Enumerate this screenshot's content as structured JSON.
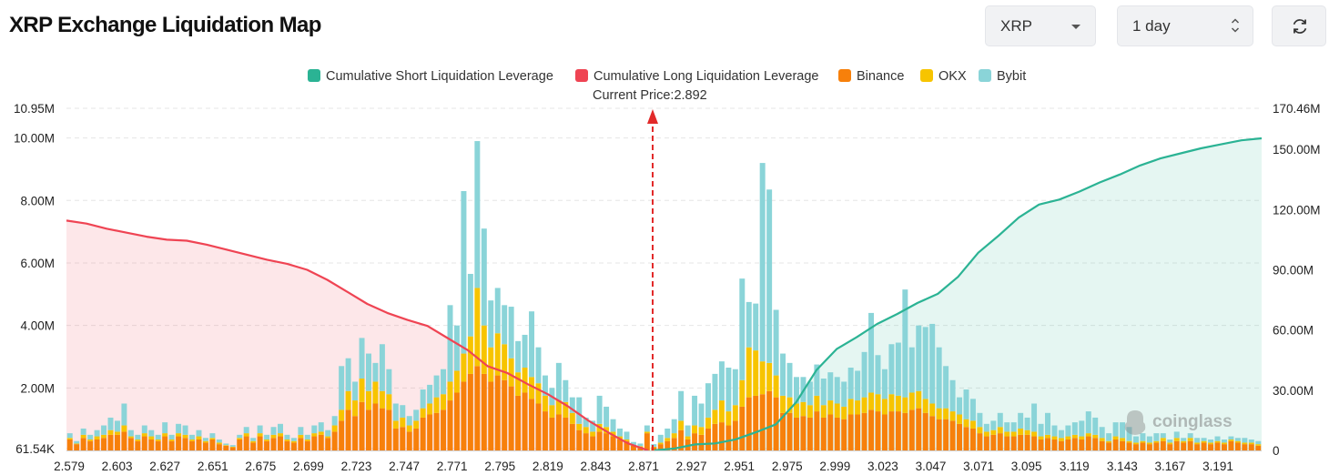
{
  "header": {
    "title": "XRP Exchange Liquidation Map",
    "coin_select": "XRP",
    "range_select": "1 day",
    "refresh_icon": "refresh-icon"
  },
  "colors": {
    "short": "#2bb394",
    "long": "#ef4453",
    "binance": "#f7800b",
    "okx": "#f7c400",
    "bybit": "#8ad4d8",
    "price_marker": "#e22a2a"
  },
  "legend": {
    "short": "Cumulative Short Liquidation Leverage",
    "long": "Cumulative Long Liquidation Leverage",
    "binance": "Binance",
    "okx": "OKX",
    "bybit": "Bybit"
  },
  "current_price_label": "Current Price:2.892",
  "watermark": "coinglass",
  "chart_data": {
    "type": "bar",
    "current_price": 2.892,
    "x_ticks": [
      "2.579",
      "2.603",
      "2.627",
      "2.651",
      "2.675",
      "2.699",
      "2.723",
      "2.747",
      "2.771",
      "2.795",
      "2.819",
      "2.843",
      "2.871",
      "2.927",
      "2.951",
      "2.975",
      "2.999",
      "3.023",
      "3.047",
      "3.071",
      "3.095",
      "3.119",
      "3.143",
      "3.167",
      "3.191"
    ],
    "y_left_ticks": [
      "61.54K",
      "2.00M",
      "4.00M",
      "6.00M",
      "8.00M",
      "10.00M",
      "10.95M"
    ],
    "y_left_values": [
      0.06154,
      2,
      4,
      6,
      8,
      10,
      10.95
    ],
    "y_right_ticks": [
      "0",
      "30.00M",
      "60.00M",
      "90.00M",
      "120.00M",
      "150.00M",
      "170.46M"
    ],
    "y_right_values": [
      0,
      30,
      60,
      90,
      120,
      150,
      170.46
    ],
    "y_left_unit": "M",
    "series_names": [
      "Binance",
      "OKX",
      "Bybit"
    ],
    "binance": [
      0.35,
      0.2,
      0.4,
      0.3,
      0.35,
      0.4,
      0.5,
      0.5,
      0.6,
      0.4,
      0.3,
      0.45,
      0.35,
      0.3,
      0.45,
      0.3,
      0.45,
      0.4,
      0.3,
      0.35,
      0.25,
      0.35,
      0.2,
      0.15,
      0.1,
      0.35,
      0.45,
      0.25,
      0.45,
      0.3,
      0.4,
      0.45,
      0.3,
      0.25,
      0.4,
      0.3,
      0.45,
      0.5,
      0.4,
      0.6,
      0.95,
      1.3,
      1.1,
      1.55,
      1.3,
      1.5,
      1.35,
      1.3,
      0.7,
      0.75,
      0.6,
      0.7,
      1.05,
      1.15,
      1.2,
      1.3,
      1.6,
      1.85,
      2.2,
      2.45,
      2.7,
      2.45,
      2.2,
      2.4,
      2.25,
      2.05,
      1.75,
      1.85,
      1.65,
      1.5,
      1.25,
      1.05,
      1.15,
      1.05,
      0.85,
      0.65,
      0.55,
      0.45,
      0.6,
      0.55,
      0.45,
      0.35,
      0.3,
      0.15,
      0.12,
      0.55,
      0.1,
      0.2,
      0.3,
      0.4,
      0.65,
      0.35,
      0.55,
      0.5,
      0.7,
      0.85,
      0.9,
      0.8,
      0.95,
      1.4,
      1.7,
      1.75,
      1.8,
      1.9,
      1.7,
      1.2,
      1.2,
      1.05,
      1.1,
      1.05,
      1.25,
      1.05,
      1.15,
      1.05,
      1.0,
      1.15,
      1.15,
      1.2,
      1.3,
      1.25,
      1.15,
      1.25,
      1.25,
      1.2,
      1.3,
      1.35,
      1.2,
      1.1,
      1.0,
      1.0,
      0.95,
      0.85,
      0.75,
      0.7,
      0.55,
      0.45,
      0.5,
      0.55,
      0.45,
      0.45,
      0.5,
      0.5,
      0.45,
      0.35,
      0.4,
      0.35,
      0.3,
      0.35,
      0.4,
      0.35,
      0.45,
      0.4,
      0.3,
      0.25,
      0.35,
      0.3,
      0.25,
      0.2,
      0.25,
      0.2,
      0.25,
      0.3,
      0.2,
      0.3,
      0.25,
      0.3,
      0.2,
      0.25,
      0.2,
      0.25,
      0.2,
      0.3,
      0.25,
      0.2,
      0.2,
      0.15
    ],
    "okx": [
      0.05,
      0.02,
      0.1,
      0.05,
      0.1,
      0.1,
      0.15,
      0.1,
      0.2,
      0.05,
      0.05,
      0.1,
      0.1,
      0.05,
      0.1,
      0.05,
      0.1,
      0.1,
      0.05,
      0.1,
      0.05,
      0.05,
      0.05,
      0.02,
      0.02,
      0.05,
      0.1,
      0.05,
      0.1,
      0.05,
      0.1,
      0.1,
      0.05,
      0.05,
      0.1,
      0.05,
      0.1,
      0.1,
      0.05,
      0.2,
      0.35,
      0.6,
      0.5,
      0.75,
      0.6,
      0.7,
      0.55,
      0.5,
      0.25,
      0.3,
      0.2,
      0.25,
      0.3,
      0.35,
      0.5,
      0.5,
      0.6,
      0.7,
      0.9,
      1.2,
      2.5,
      1.55,
      1.1,
      1.35,
      1.15,
      0.9,
      0.75,
      0.8,
      0.7,
      0.65,
      0.5,
      0.4,
      0.45,
      0.5,
      0.35,
      0.2,
      0.2,
      0.15,
      0.25,
      0.2,
      0.15,
      0.1,
      0.05,
      0.02,
      0.02,
      0.05,
      0.02,
      0.05,
      0.1,
      0.15,
      0.3,
      0.1,
      0.25,
      0.25,
      0.35,
      0.45,
      0.7,
      0.45,
      0.5,
      0.85,
      1.6,
      1.45,
      1.05,
      0.9,
      0.7,
      0.55,
      0.5,
      0.45,
      0.45,
      0.4,
      0.5,
      0.4,
      0.45,
      0.45,
      0.4,
      0.5,
      0.45,
      0.5,
      0.55,
      0.55,
      0.5,
      0.55,
      0.5,
      0.5,
      0.55,
      0.55,
      0.45,
      0.4,
      0.35,
      0.35,
      0.3,
      0.3,
      0.25,
      0.25,
      0.2,
      0.15,
      0.15,
      0.2,
      0.15,
      0.15,
      0.2,
      0.15,
      0.15,
      0.1,
      0.1,
      0.1,
      0.1,
      0.1,
      0.1,
      0.1,
      0.1,
      0.1,
      0.1,
      0.05,
      0.1,
      0.1,
      0.05,
      0.05,
      0.05,
      0.05,
      0.05,
      0.1,
      0.05,
      0.1,
      0.05,
      0.1,
      0.05,
      0.05,
      0.05,
      0.05,
      0.05,
      0.05,
      0.05,
      0.05,
      0.05,
      0.05
    ],
    "bybit": [
      0.15,
      0.08,
      0.2,
      0.15,
      0.2,
      0.3,
      0.4,
      0.35,
      0.7,
      0.2,
      0.15,
      0.25,
      0.2,
      0.15,
      0.35,
      0.15,
      0.3,
      0.3,
      0.15,
      0.2,
      0.1,
      0.15,
      0.1,
      0.05,
      0.05,
      0.1,
      0.2,
      0.1,
      0.25,
      0.15,
      0.25,
      0.3,
      0.15,
      0.1,
      0.25,
      0.15,
      0.25,
      0.3,
      0.2,
      0.3,
      1.4,
      1.05,
      0.6,
      1.3,
      1.2,
      0.6,
      1.5,
      0.8,
      0.55,
      0.4,
      0.3,
      0.35,
      0.6,
      0.6,
      0.7,
      0.8,
      2.45,
      1.45,
      5.2,
      2.0,
      4.7,
      3.1,
      1.5,
      1.45,
      1.25,
      1.65,
      1.0,
      1.05,
      2.1,
      1.15,
      0.65,
      0.55,
      1.2,
      0.7,
      0.5,
      0.85,
      0.3,
      0.35,
      0.9,
      0.65,
      0.4,
      0.25,
      0.25,
      0.1,
      0.08,
      0.2,
      0.08,
      0.25,
      0.3,
      0.45,
      0.95,
      0.35,
      0.95,
      0.75,
      1.1,
      1.15,
      1.25,
      1.4,
      1.15,
      3.25,
      1.45,
      1.5,
      6.35,
      5.55,
      2.1,
      1.35,
      1.1,
      0.85,
      0.8,
      0.75,
      1.0,
      0.85,
      0.9,
      0.85,
      0.8,
      1.0,
      0.95,
      1.45,
      2.55,
      1.25,
      0.95,
      1.6,
      1.7,
      3.45,
      1.45,
      2.1,
      2.3,
      2.55,
      1.95,
      1.35,
      1.0,
      0.55,
      0.95,
      0.7,
      0.45,
      0.25,
      0.3,
      0.45,
      0.3,
      0.3,
      0.5,
      0.4,
      0.9,
      0.4,
      0.7,
      0.35,
      0.25,
      0.35,
      0.4,
      0.5,
      0.7,
      0.55,
      0.35,
      0.25,
      0.45,
      0.5,
      0.45,
      0.2,
      0.25,
      0.2,
      0.25,
      0.15,
      0.1,
      0.2,
      0.1,
      0.15,
      0.15,
      0.1,
      0.1,
      0.15,
      0.1,
      0.1,
      0.1,
      0.15,
      0.1,
      0.1
    ],
    "long_cumulative": [
      [
        0,
        114.5
      ],
      [
        0.0345,
        113.0
      ],
      [
        0.069,
        110.5
      ],
      [
        0.1034,
        108.5
      ],
      [
        0.1379,
        106.5
      ],
      [
        0.1724,
        105.0
      ],
      [
        0.2069,
        104.5
      ],
      [
        0.2414,
        102.5
      ],
      [
        0.2759,
        100.0
      ],
      [
        0.3103,
        97.5
      ],
      [
        0.3448,
        95.0
      ],
      [
        0.3793,
        93.0
      ],
      [
        0.4138,
        90.0
      ],
      [
        0.4483,
        85.0
      ],
      [
        0.4828,
        79.0
      ],
      [
        0.5172,
        73.0
      ],
      [
        0.5517,
        68.5
      ],
      [
        0.5862,
        65.0
      ],
      [
        0.6207,
        62.0
      ],
      [
        0.6552,
        56.0
      ],
      [
        0.6897,
        50.0
      ],
      [
        0.7241,
        42.0
      ],
      [
        0.7586,
        38.5
      ],
      [
        0.7931,
        33.0
      ],
      [
        0.8276,
        28.0
      ],
      [
        0.8621,
        22.0
      ],
      [
        0.8966,
        15.0
      ],
      [
        0.931,
        9.0
      ],
      [
        0.9655,
        3.5
      ],
      [
        1.0,
        0
      ]
    ],
    "short_cumulative": [
      [
        0,
        0
      ],
      [
        0.0333,
        1.0
      ],
      [
        0.0667,
        3.0
      ],
      [
        0.1,
        3.5
      ],
      [
        0.1333,
        5.5
      ],
      [
        0.1667,
        9.0
      ],
      [
        0.2,
        13.0
      ],
      [
        0.2333,
        24.0
      ],
      [
        0.2667,
        40.0
      ],
      [
        0.3,
        50.5
      ],
      [
        0.3333,
        56.5
      ],
      [
        0.3667,
        63.0
      ],
      [
        0.4,
        68.0
      ],
      [
        0.4333,
        73.5
      ],
      [
        0.4667,
        78.0
      ],
      [
        0.5,
        86.5
      ],
      [
        0.5333,
        98.5
      ],
      [
        0.5667,
        107.0
      ],
      [
        0.6,
        116.0
      ],
      [
        0.6333,
        122.5
      ],
      [
        0.6667,
        125.0
      ],
      [
        0.7,
        129.0
      ],
      [
        0.7333,
        133.5
      ],
      [
        0.7667,
        137.5
      ],
      [
        0.8,
        142.0
      ],
      [
        0.8333,
        145.5
      ],
      [
        0.8667,
        148.0
      ],
      [
        0.9,
        150.5
      ],
      [
        0.9333,
        152.5
      ],
      [
        0.9667,
        154.5
      ],
      [
        1.0,
        155.5
      ]
    ]
  }
}
